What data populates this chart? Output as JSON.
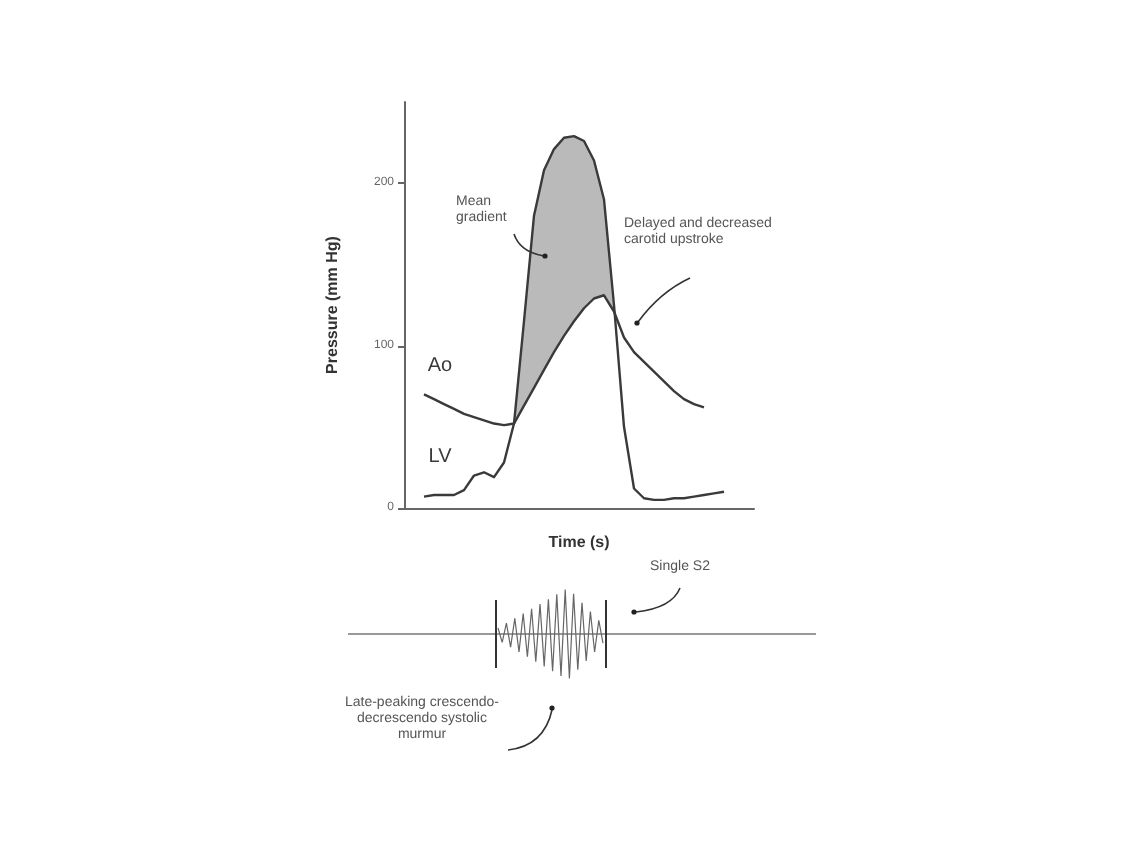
{
  "chart_data": {
    "type": "line",
    "xlabel": "Time (s)",
    "ylabel": "Pressure (mm Hg)",
    "categories": [
      null,
      null,
      null,
      null,
      null,
      null,
      null,
      null,
      null,
      null,
      null,
      null,
      null,
      null,
      null,
      null,
      null,
      null,
      null,
      null,
      null,
      null,
      null,
      null,
      null,
      null,
      null,
      null,
      null,
      null,
      null,
      null,
      null,
      null,
      null,
      null
    ],
    "series": [
      {
        "name": "Ao",
        "color": "#3a3a3a",
        "values": [
          null,
          null,
          70,
          67,
          64,
          61,
          58,
          56,
          54,
          52,
          51,
          52,
          63,
          74,
          85,
          96,
          106,
          115,
          123,
          129,
          131,
          121,
          105,
          96,
          90,
          84,
          78,
          72,
          67,
          64,
          62,
          null,
          null,
          null,
          null,
          null
        ]
      },
      {
        "name": "LV",
        "color": "#3a3a3a",
        "values": [
          null,
          null,
          7,
          8,
          8,
          8,
          11,
          20,
          22,
          19,
          28,
          52,
          115,
          180,
          208,
          221,
          228,
          229,
          226,
          214,
          190,
          125,
          50,
          12,
          6,
          5,
          5,
          6,
          6,
          7,
          8,
          9,
          10,
          null,
          null,
          null
        ],
        "lower": [
          null,
          null,
          null,
          null,
          null,
          null,
          null,
          null,
          null,
          null,
          null,
          52,
          63,
          74,
          85,
          96,
          106,
          115,
          123,
          129,
          131,
          121,
          null,
          null,
          null,
          null,
          null,
          null,
          null,
          null,
          null,
          null,
          null,
          null,
          null,
          null
        ],
        "upper": [
          null,
          null,
          null,
          null,
          null,
          null,
          null,
          null,
          null,
          null,
          null,
          52,
          115,
          180,
          208,
          221,
          228,
          229,
          226,
          214,
          190,
          125,
          null,
          null,
          null,
          null,
          null,
          null,
          null,
          null,
          null,
          null,
          null,
          null,
          null,
          null
        ]
      }
    ],
    "ylim": [
      0,
      250
    ],
    "yticks": [
      0,
      100,
      200
    ],
    "grid": false,
    "legend": false,
    "marker": "none",
    "line_style": "solid",
    "annotations": [
      "Mean gradient",
      "Delayed and decreased carotid upstroke",
      "Single S2",
      "Late-peaking crescendo-decrescendo systolic murmur"
    ]
  }
}
